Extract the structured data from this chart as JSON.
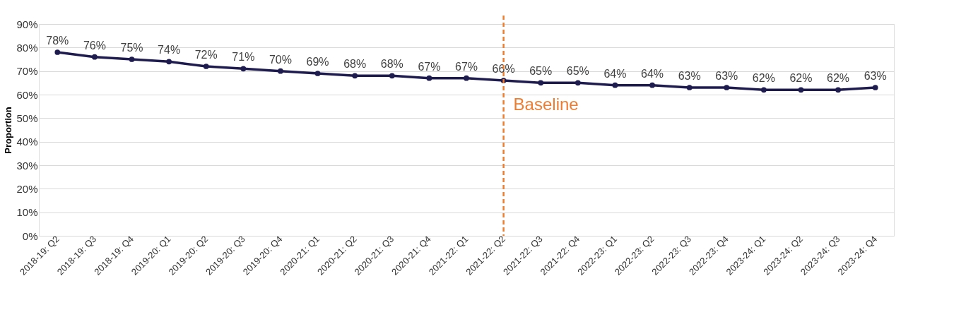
{
  "chart_data": {
    "type": "line",
    "ylabel": "Proportion",
    "categories": [
      "2018-19: Q2",
      "2018-19: Q3",
      "2018-19: Q4",
      "2019-20: Q1",
      "2019-20: Q2",
      "2019-20: Q3",
      "2019-20: Q4",
      "2020-21: Q1",
      "2020-21: Q2",
      "2020-21: Q3",
      "2020-21: Q4",
      "2021-22: Q1",
      "2021-22: Q2",
      "2021-22: Q3",
      "2021-22: Q4",
      "2022-23: Q1",
      "2022-23: Q2",
      "2022-23: Q3",
      "2022-23: Q4",
      "2023-24: Q1",
      "2023-24: Q2",
      "2023-24: Q3",
      "2023-24: Q4"
    ],
    "series": [
      {
        "color": "#1e1b4f",
        "values": [
          78,
          76,
          75,
          74,
          72,
          71,
          70,
          69,
          68,
          68,
          67,
          67,
          66,
          65,
          65,
          64,
          64,
          63,
          63,
          62,
          62,
          62,
          63
        ],
        "value_labels": [
          "78%",
          "76%",
          "75%",
          "74%",
          "72%",
          "71%",
          "70%",
          "69%",
          "68%",
          "68%",
          "67%",
          "67%",
          "66%",
          "65%",
          "65%",
          "64%",
          "64%",
          "63%",
          "63%",
          "62%",
          "62%",
          "62%",
          "63%"
        ]
      }
    ],
    "ylim": [
      0,
      90
    ],
    "yticks": [
      {
        "value": 0,
        "label": "0%"
      },
      {
        "value": 10,
        "label": "10%"
      },
      {
        "value": 20,
        "label": "20%"
      },
      {
        "value": 30,
        "label": "30%"
      },
      {
        "value": 40,
        "label": "40%"
      },
      {
        "value": 50,
        "label": "50%"
      },
      {
        "value": 60,
        "label": "60%"
      },
      {
        "value": 70,
        "label": "70%"
      },
      {
        "value": 80,
        "label": "80%"
      },
      {
        "value": 90,
        "label": "90%"
      }
    ],
    "grid": "y",
    "marker": "circle",
    "line_style": "solid",
    "ref_lines": [
      {
        "axis": "x",
        "value": "2021-22: Q2",
        "label": "Baseline",
        "color": "#ed7d31",
        "line_style": "dashed"
      }
    ]
  }
}
